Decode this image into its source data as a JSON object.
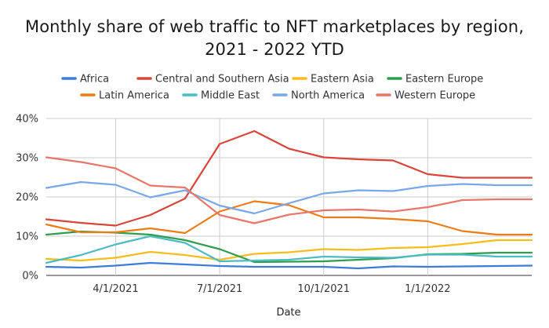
{
  "chart_data": {
    "type": "line",
    "title_lines": [
      "Monthly share of web traffic to NFT marketplaces by region,",
      "2021 - 2022 YTD"
    ],
    "xlabel": "Date",
    "ylabel": "",
    "ylim": [
      0,
      40
    ],
    "y_ticks": [
      0,
      10,
      20,
      30,
      40
    ],
    "y_tick_labels": [
      "0%",
      "10%",
      "20%",
      "30%",
      "40%"
    ],
    "x_tick_labels": [
      {
        "label": "4/1/2021",
        "at_index": 2
      },
      {
        "label": "7/1/2021",
        "at_index": 5
      },
      {
        "label": "10/1/2021",
        "at_index": 8
      },
      {
        "label": "1/1/2022",
        "at_index": 11
      }
    ],
    "x": [
      "2021-01",
      "2021-02",
      "2021-03",
      "2021-04",
      "2021-05",
      "2021-06",
      "2021-07",
      "2021-08",
      "2021-09",
      "2021-10",
      "2021-11",
      "2021-12",
      "2022-01",
      "2022-02",
      "2022-03"
    ],
    "grid": "both",
    "legend_position": "top",
    "series": [
      {
        "name": "Africa",
        "color": "#3d7bd9",
        "values": [
          2.2,
          2.0,
          2.5,
          3.2,
          2.8,
          2.4,
          2.2,
          2.2,
          2.2,
          1.8,
          2.3,
          2.2,
          2.3,
          2.4,
          2.5
        ]
      },
      {
        "name": "Central and Southern Asia",
        "color": "#d8453a",
        "values": [
          14.3,
          13.4,
          12.7,
          15.4,
          19.6,
          33.5,
          36.8,
          32.3,
          30.1,
          29.6,
          29.3,
          25.8,
          24.9,
          24.9,
          24.9
        ]
      },
      {
        "name": "Eastern Asia",
        "color": "#f5bd1c",
        "values": [
          4.2,
          3.8,
          4.5,
          6.0,
          5.2,
          4.0,
          5.5,
          5.9,
          6.7,
          6.5,
          7.0,
          7.2,
          8.0,
          9.0,
          9.0
        ]
      },
      {
        "name": "Eastern Europe",
        "color": "#2e9e4e",
        "values": [
          10.4,
          11.2,
          10.9,
          10.4,
          9.0,
          6.7,
          3.4,
          3.5,
          3.6,
          4.0,
          4.4,
          5.4,
          5.5,
          5.8,
          5.8
        ]
      },
      {
        "name": "Latin America",
        "color": "#ed7b16",
        "values": [
          13.0,
          11.0,
          11.0,
          12.0,
          10.8,
          16.3,
          18.9,
          17.9,
          14.8,
          14.8,
          14.4,
          13.8,
          11.3,
          10.4,
          10.4
        ]
      },
      {
        "name": "Middle East",
        "color": "#4cbbc3",
        "values": [
          3.2,
          5.2,
          7.9,
          10.0,
          8.3,
          3.6,
          3.8,
          4.0,
          4.8,
          4.6,
          4.5,
          5.3,
          5.3,
          4.8,
          4.8
        ]
      },
      {
        "name": "North America",
        "color": "#7aa7e8",
        "values": [
          22.3,
          23.8,
          23.1,
          19.9,
          21.7,
          17.8,
          15.8,
          18.4,
          20.9,
          21.7,
          21.5,
          22.8,
          23.3,
          23.0,
          23.0
        ]
      },
      {
        "name": "Western Europe",
        "color": "#e8776a",
        "values": [
          30.1,
          28.9,
          27.3,
          22.9,
          22.4,
          15.4,
          13.3,
          15.5,
          16.6,
          16.8,
          16.3,
          17.4,
          19.2,
          19.4,
          19.4
        ]
      }
    ]
  }
}
